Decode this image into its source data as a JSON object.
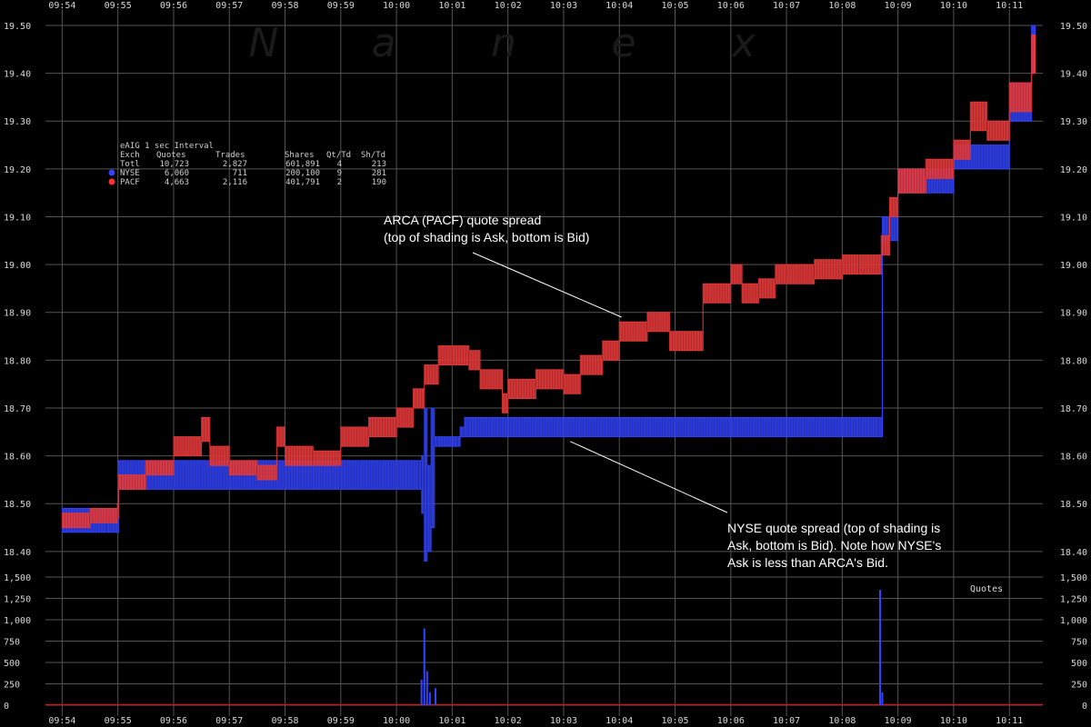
{
  "watermark": [
    "N",
    "a",
    "n",
    "e",
    "x"
  ],
  "stats_table": {
    "title": "eAIG 1 sec Interval",
    "headers": [
      "Exch",
      "Quotes",
      "Trades",
      "Shares",
      "Qt/Td",
      "Sh/Td"
    ],
    "rows": [
      {
        "cells": [
          "Totl",
          "10,723",
          "2,827",
          "601,891",
          "4",
          "213"
        ],
        "color": ""
      },
      {
        "cells": [
          "NYSE",
          "6,060",
          "711",
          "200,100",
          "9",
          "281"
        ],
        "color": "#3344ff"
      },
      {
        "cells": [
          "PACF",
          "4,663",
          "2,116",
          "401,791",
          "2",
          "190"
        ],
        "color": "#ff3333"
      }
    ]
  },
  "annotations": [
    {
      "lines": [
        "ARCA (PACF) quote spread",
        "(top of shading is Ask, bottom is Bid)"
      ],
      "target": {
        "time": 10.04,
        "price": 18.89
      }
    },
    {
      "lines": [
        "NYSE quote spread (top of shading is",
        "Ask, bottom is Bid). Note how NYSE's",
        "Ask is less than ARCA's Bid."
      ],
      "target": {
        "time": 9.12,
        "price": 18.63
      }
    }
  ],
  "volume_label": "Quotes",
  "colors": {
    "nyse": "#3344ff",
    "pacf": "#e83a3a",
    "grid": "#555555"
  },
  "chart_data": {
    "type": "area",
    "x_unit": "minutes past 09:54",
    "x_range": [
      -0.3,
      17.6
    ],
    "x_ticks": [
      {
        "label": "09:54",
        "value": 0
      },
      {
        "label": "09:55",
        "value": 1
      },
      {
        "label": "09:56",
        "value": 2
      },
      {
        "label": "09:57",
        "value": 3
      },
      {
        "label": "09:58",
        "value": 4
      },
      {
        "label": "09:59",
        "value": 5
      },
      {
        "label": "10:00",
        "value": 6
      },
      {
        "label": "10:01",
        "value": 7
      },
      {
        "label": "10:02",
        "value": 8
      },
      {
        "label": "10:03",
        "value": 9
      },
      {
        "label": "10:04",
        "value": 10
      },
      {
        "label": "10:05",
        "value": 11
      },
      {
        "label": "10:06",
        "value": 12
      },
      {
        "label": "10:07",
        "value": 13
      },
      {
        "label": "10:08",
        "value": 14
      },
      {
        "label": "10:09",
        "value": 15
      },
      {
        "label": "10:10",
        "value": 16
      },
      {
        "label": "10:11",
        "value": 17
      }
    ],
    "price_ylim": [
      18.375,
      19.5
    ],
    "price_ticks": [
      "18.40",
      "18.50",
      "18.60",
      "18.70",
      "18.80",
      "18.90",
      "19.00",
      "19.10",
      "19.20",
      "19.30",
      "19.40",
      "19.50"
    ],
    "volume_ylim": [
      0,
      1500
    ],
    "volume_ticks": [
      "0",
      "250",
      "500",
      "750",
      "1,000",
      "1,250",
      "1,500"
    ],
    "grid": true,
    "series": [
      {
        "name": "NYSE",
        "kind": "quote_spread",
        "x": [
          0,
          0.8,
          0.99,
          1.01,
          1.3,
          2.0,
          3.0,
          4.0,
          5.0,
          6.0,
          6.4,
          6.45,
          6.5,
          6.55,
          6.62,
          6.68,
          6.74,
          7.1,
          7.14,
          7.22,
          7.3,
          14.0,
          14.65,
          14.72,
          15.0,
          16.0,
          17.0,
          17.4
        ],
        "bid": [
          18.44,
          18.44,
          18.44,
          18.53,
          18.53,
          18.53,
          18.53,
          18.53,
          18.53,
          18.53,
          18.53,
          18.48,
          18.38,
          18.4,
          18.45,
          18.62,
          18.62,
          18.62,
          18.64,
          18.64,
          18.64,
          18.64,
          18.64,
          19.05,
          19.15,
          19.2,
          19.3,
          19.4
        ],
        "ask": [
          18.49,
          18.49,
          18.49,
          18.59,
          18.59,
          18.59,
          18.59,
          18.59,
          18.59,
          18.59,
          18.59,
          18.6,
          18.7,
          18.58,
          18.7,
          18.64,
          18.64,
          18.64,
          18.66,
          18.68,
          18.68,
          18.68,
          18.68,
          19.1,
          19.2,
          19.25,
          19.38,
          19.5
        ]
      },
      {
        "name": "PACF",
        "kind": "quote_spread",
        "x": [
          0,
          0.5,
          0.99,
          1.01,
          1.5,
          2.0,
          2.5,
          2.65,
          3.0,
          3.5,
          3.85,
          4.0,
          4.5,
          5.0,
          5.5,
          6.0,
          6.3,
          6.5,
          6.75,
          7.0,
          7.3,
          7.5,
          7.9,
          8.0,
          8.5,
          9.0,
          9.3,
          9.7,
          10.0,
          10.5,
          10.9,
          11.5,
          12.0,
          12.2,
          12.5,
          12.8,
          13.0,
          13.5,
          14.0,
          14.3,
          14.7,
          14.85,
          15.0,
          15.5,
          16.0,
          16.3,
          16.6,
          17.0,
          17.4
        ],
        "bid": [
          18.45,
          18.46,
          18.47,
          18.53,
          18.56,
          18.6,
          18.63,
          18.58,
          18.56,
          18.55,
          18.62,
          18.58,
          18.58,
          18.62,
          18.64,
          18.66,
          18.7,
          18.75,
          18.79,
          18.79,
          18.78,
          18.74,
          18.69,
          18.72,
          18.74,
          18.73,
          18.77,
          18.8,
          18.84,
          18.86,
          18.82,
          18.92,
          18.96,
          18.92,
          18.93,
          18.96,
          18.96,
          18.97,
          18.98,
          18.98,
          19.02,
          19.1,
          19.15,
          19.18,
          19.22,
          19.28,
          19.26,
          19.32,
          19.4
        ],
        "ask": [
          18.48,
          18.49,
          18.5,
          18.56,
          18.59,
          18.64,
          18.68,
          18.62,
          18.59,
          18.58,
          18.66,
          18.62,
          18.61,
          18.66,
          18.68,
          18.7,
          18.74,
          18.79,
          18.83,
          18.83,
          18.82,
          18.78,
          18.73,
          18.76,
          18.78,
          18.77,
          18.81,
          18.84,
          18.88,
          18.9,
          18.86,
          18.96,
          19.0,
          18.96,
          18.97,
          19.0,
          19.0,
          19.01,
          19.02,
          19.02,
          19.06,
          19.14,
          19.2,
          19.22,
          19.26,
          19.34,
          19.3,
          19.38,
          19.48
        ]
      }
    ],
    "volume_series": [
      {
        "name": "NYSE",
        "x": [
          6.45,
          6.5,
          6.55,
          6.6,
          6.7,
          14.68,
          14.72
        ],
        "y": [
          300,
          900,
          400,
          150,
          200,
          1350,
          150
        ]
      }
    ]
  }
}
